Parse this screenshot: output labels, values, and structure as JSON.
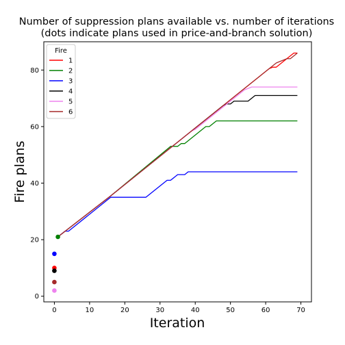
{
  "chart_data": {
    "type": "line",
    "title_line1": "Number of suppression plans available vs. number of iterations",
    "title_line2": "(dots indicate plans used in price-and-branch solution)",
    "xlabel": "Iteration",
    "ylabel": "Fire plans",
    "xlim": [
      -3,
      73
    ],
    "ylim": [
      -2,
      90
    ],
    "xticks": [
      0,
      10,
      20,
      30,
      40,
      50,
      60,
      70
    ],
    "yticks": [
      0,
      20,
      40,
      60,
      80
    ],
    "grid": false,
    "legend": {
      "title": "Fire",
      "placement": "top-left"
    },
    "series": [
      {
        "name": "1",
        "color": "#ff0000",
        "x": [
          1,
          16,
          33,
          40,
          47,
          52,
          56,
          61,
          62,
          63,
          67,
          68,
          69
        ],
        "y": [
          21,
          35.5,
          52.5,
          59.5,
          66.5,
          71.5,
          75.5,
          80.5,
          81,
          81,
          85,
          86,
          86
        ]
      },
      {
        "name": "2",
        "color": "#008000",
        "x": [
          1,
          16,
          33,
          35,
          36,
          37,
          43,
          44,
          45,
          46,
          69
        ],
        "y": [
          21,
          35.5,
          53,
          53,
          54,
          54,
          60,
          60,
          61,
          62,
          62
        ]
      },
      {
        "name": "3",
        "color": "#0000ff",
        "x": [
          1,
          2,
          3,
          4,
          16,
          26,
          32,
          33,
          35,
          37,
          38,
          69
        ],
        "y": [
          21,
          22,
          23,
          23,
          35,
          35,
          41,
          41,
          43,
          43,
          44,
          44
        ]
      },
      {
        "name": "4",
        "color": "#000000",
        "x": [
          1,
          16,
          33,
          40,
          48,
          49,
          50,
          51,
          55,
          57,
          69
        ],
        "y": [
          21,
          35.5,
          52.5,
          59.5,
          67.5,
          68,
          68,
          69,
          69,
          71,
          71
        ]
      },
      {
        "name": "5",
        "color": "#ee82ee",
        "x": [
          1,
          16,
          33,
          39,
          40,
          48,
          54,
          56,
          69
        ],
        "y": [
          21,
          35.5,
          52.5,
          58.5,
          59,
          67,
          73,
          74,
          74
        ]
      },
      {
        "name": "6",
        "color": "#a52a2a",
        "x": [
          1,
          16,
          33,
          41,
          47,
          53,
          58,
          63,
          64,
          65,
          66,
          67,
          69
        ],
        "y": [
          21,
          35.5,
          52.5,
          60.5,
          66.5,
          72.5,
          77.5,
          82.5,
          83,
          83.5,
          84,
          84,
          86
        ]
      }
    ],
    "dots": [
      {
        "x": 0,
        "y": 15,
        "color": "#0000ff"
      },
      {
        "x": 0,
        "y": 10,
        "color": "#ff0000"
      },
      {
        "x": 0,
        "y": 9,
        "color": "#000000"
      },
      {
        "x": 0,
        "y": 5,
        "color": "#a52a2a"
      },
      {
        "x": 0,
        "y": 2,
        "color": "#ee82ee"
      },
      {
        "x": 1,
        "y": 21,
        "color": "#008000"
      }
    ]
  }
}
